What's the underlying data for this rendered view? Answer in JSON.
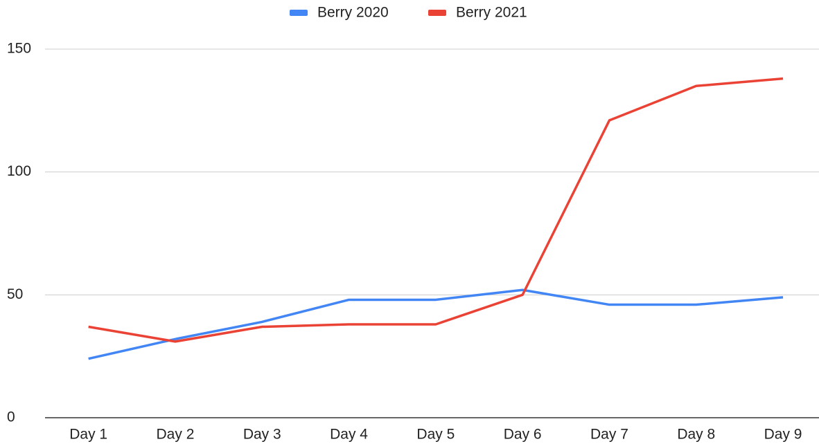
{
  "chart_data": {
    "type": "line",
    "categories": [
      "Day 1",
      "Day 2",
      "Day 3",
      "Day 4",
      "Day 5",
      "Day 6",
      "Day 7",
      "Day 8",
      "Day 9"
    ],
    "series": [
      {
        "name": "Berry 2020",
        "color": "#4285f4",
        "values": [
          24,
          32,
          39,
          48,
          48,
          52,
          46,
          46,
          49
        ]
      },
      {
        "name": "Berry 2021",
        "color": "#ea4335",
        "values": [
          37,
          31,
          37,
          38,
          38,
          50,
          121,
          135,
          138
        ]
      }
    ],
    "ylim": [
      0,
      150
    ],
    "yticks": [
      0,
      50,
      100,
      150
    ],
    "grid": true,
    "legend": "top"
  }
}
